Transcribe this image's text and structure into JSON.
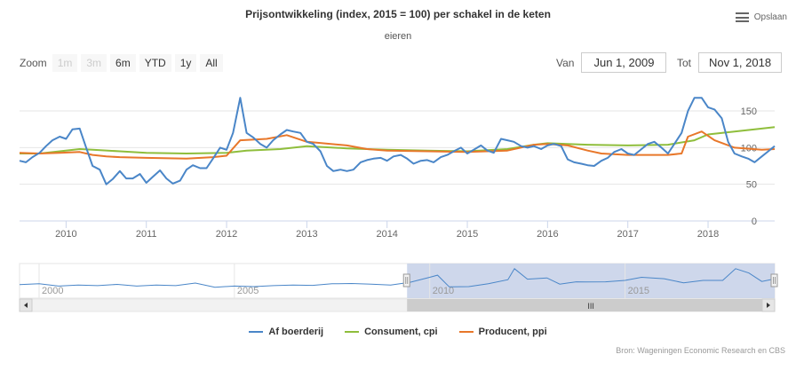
{
  "header": {
    "title": "Prijsontwikkeling (index, 2015 = 100) per schakel in de keten",
    "subtitle": "eieren"
  },
  "export": {
    "label": "Opslaan"
  },
  "zoom": {
    "label": "Zoom",
    "buttons": [
      {
        "label": "1m",
        "disabled": true
      },
      {
        "label": "3m",
        "disabled": true
      },
      {
        "label": "6m",
        "disabled": false
      },
      {
        "label": "YTD",
        "disabled": false
      },
      {
        "label": "1y",
        "disabled": false
      },
      {
        "label": "All",
        "disabled": false
      }
    ]
  },
  "range": {
    "from_label": "Van",
    "from_value": "Jun 1, 2009",
    "to_label": "Tot",
    "to_value": "Nov 1, 2018"
  },
  "navigator": {
    "labels": [
      "2000",
      "2005",
      "2010",
      "2015"
    ],
    "scrollbar_grip": "III"
  },
  "credits": "Bron: Wageningen Economic Research en CBS",
  "colors": {
    "boerderij": "#4a86c8",
    "consument": "#8fbe3c",
    "producent": "#e8772a",
    "navigator_fill": "#c5d0e8"
  },
  "chart_data": {
    "type": "line",
    "title": "Prijsontwikkeling (index, 2015 = 100) per schakel in de keten",
    "subtitle": "eieren",
    "x_range": [
      2009.42,
      2018.83
    ],
    "ylim": [
      0,
      190
    ],
    "y_ticks": [
      0,
      50,
      100,
      150
    ],
    "x_ticks": [
      "2010",
      "2011",
      "2012",
      "2013",
      "2014",
      "2015",
      "2016",
      "2017",
      "2018"
    ],
    "legend_position": "bottom",
    "series": [
      {
        "name": "Af boerderij",
        "color": "#4a86c8",
        "points": [
          [
            2009.42,
            82
          ],
          [
            2009.5,
            80
          ],
          [
            2009.58,
            87
          ],
          [
            2009.67,
            93
          ],
          [
            2009.75,
            102
          ],
          [
            2009.83,
            110
          ],
          [
            2009.92,
            115
          ],
          [
            2010.0,
            112
          ],
          [
            2010.08,
            125
          ],
          [
            2010.17,
            126
          ],
          [
            2010.25,
            100
          ],
          [
            2010.33,
            75
          ],
          [
            2010.42,
            70
          ],
          [
            2010.5,
            50
          ],
          [
            2010.58,
            57
          ],
          [
            2010.67,
            68
          ],
          [
            2010.75,
            58
          ],
          [
            2010.83,
            58
          ],
          [
            2010.92,
            64
          ],
          [
            2011.0,
            52
          ],
          [
            2011.08,
            60
          ],
          [
            2011.17,
            69
          ],
          [
            2011.25,
            58
          ],
          [
            2011.33,
            51
          ],
          [
            2011.42,
            55
          ],
          [
            2011.5,
            70
          ],
          [
            2011.58,
            76
          ],
          [
            2011.67,
            72
          ],
          [
            2011.75,
            72
          ],
          [
            2011.83,
            85
          ],
          [
            2011.92,
            100
          ],
          [
            2012.0,
            97
          ],
          [
            2012.08,
            120
          ],
          [
            2012.17,
            168
          ],
          [
            2012.25,
            120
          ],
          [
            2012.33,
            114
          ],
          [
            2012.42,
            105
          ],
          [
            2012.5,
            100
          ],
          [
            2012.58,
            110
          ],
          [
            2012.67,
            118
          ],
          [
            2012.75,
            124
          ],
          [
            2012.83,
            122
          ],
          [
            2012.92,
            120
          ],
          [
            2013.0,
            108
          ],
          [
            2013.08,
            105
          ],
          [
            2013.17,
            95
          ],
          [
            2013.25,
            75
          ],
          [
            2013.33,
            68
          ],
          [
            2013.42,
            70
          ],
          [
            2013.5,
            68
          ],
          [
            2013.58,
            70
          ],
          [
            2013.67,
            80
          ],
          [
            2013.75,
            83
          ],
          [
            2013.83,
            85
          ],
          [
            2013.92,
            86
          ],
          [
            2014.0,
            82
          ],
          [
            2014.08,
            88
          ],
          [
            2014.17,
            90
          ],
          [
            2014.25,
            85
          ],
          [
            2014.33,
            78
          ],
          [
            2014.42,
            82
          ],
          [
            2014.5,
            83
          ],
          [
            2014.58,
            80
          ],
          [
            2014.67,
            87
          ],
          [
            2014.75,
            90
          ],
          [
            2014.83,
            95
          ],
          [
            2014.92,
            100
          ],
          [
            2015.0,
            92
          ],
          [
            2015.08,
            97
          ],
          [
            2015.17,
            103
          ],
          [
            2015.25,
            96
          ],
          [
            2015.33,
            93
          ],
          [
            2015.42,
            112
          ],
          [
            2015.5,
            110
          ],
          [
            2015.58,
            108
          ],
          [
            2015.67,
            102
          ],
          [
            2015.75,
            100
          ],
          [
            2015.83,
            102
          ],
          [
            2015.92,
            98
          ],
          [
            2016.0,
            103
          ],
          [
            2016.08,
            105
          ],
          [
            2016.17,
            102
          ],
          [
            2016.25,
            84
          ],
          [
            2016.33,
            80
          ],
          [
            2016.42,
            78
          ],
          [
            2016.5,
            76
          ],
          [
            2016.58,
            75
          ],
          [
            2016.67,
            82
          ],
          [
            2016.75,
            86
          ],
          [
            2016.83,
            94
          ],
          [
            2016.92,
            98
          ],
          [
            2017.0,
            92
          ],
          [
            2017.08,
            90
          ],
          [
            2017.17,
            98
          ],
          [
            2017.25,
            105
          ],
          [
            2017.33,
            108
          ],
          [
            2017.42,
            100
          ],
          [
            2017.5,
            92
          ],
          [
            2017.58,
            105
          ],
          [
            2017.67,
            120
          ],
          [
            2017.75,
            150
          ],
          [
            2017.83,
            168
          ],
          [
            2017.92,
            168
          ],
          [
            2018.0,
            155
          ],
          [
            2018.08,
            152
          ],
          [
            2018.17,
            140
          ],
          [
            2018.25,
            108
          ],
          [
            2018.33,
            92
          ],
          [
            2018.42,
            88
          ],
          [
            2018.5,
            85
          ],
          [
            2018.58,
            80
          ],
          [
            2018.67,
            88
          ],
          [
            2018.75,
            95
          ],
          [
            2018.83,
            102
          ]
        ]
      },
      {
        "name": "Consument, cpi",
        "color": "#8fbe3c",
        "points": [
          [
            2009.42,
            92
          ],
          [
            2009.67,
            92
          ],
          [
            2009.92,
            95
          ],
          [
            2010.17,
            98
          ],
          [
            2010.33,
            97
          ],
          [
            2010.67,
            95
          ],
          [
            2011.0,
            93
          ],
          [
            2011.5,
            92
          ],
          [
            2012.0,
            93
          ],
          [
            2012.25,
            96
          ],
          [
            2012.67,
            98
          ],
          [
            2013.0,
            102
          ],
          [
            2013.5,
            99
          ],
          [
            2014.0,
            97
          ],
          [
            2014.5,
            96
          ],
          [
            2015.0,
            95
          ],
          [
            2015.5,
            98
          ],
          [
            2015.83,
            104
          ],
          [
            2016.0,
            106
          ],
          [
            2016.5,
            104
          ],
          [
            2017.0,
            103
          ],
          [
            2017.5,
            104
          ],
          [
            2017.83,
            110
          ],
          [
            2018.0,
            118
          ],
          [
            2018.33,
            122
          ],
          [
            2018.67,
            126
          ],
          [
            2018.83,
            128
          ]
        ]
      },
      {
        "name": "Producent, ppi",
        "color": "#e8772a",
        "points": [
          [
            2009.42,
            93
          ],
          [
            2009.67,
            92
          ],
          [
            2009.92,
            93
          ],
          [
            2010.17,
            94
          ],
          [
            2010.33,
            90
          ],
          [
            2010.5,
            88
          ],
          [
            2010.67,
            87
          ],
          [
            2011.0,
            86
          ],
          [
            2011.5,
            85
          ],
          [
            2011.83,
            87
          ],
          [
            2012.0,
            89
          ],
          [
            2012.17,
            110
          ],
          [
            2012.5,
            112
          ],
          [
            2012.75,
            117
          ],
          [
            2013.0,
            108
          ],
          [
            2013.5,
            103
          ],
          [
            2013.75,
            98
          ],
          [
            2014.0,
            96
          ],
          [
            2014.5,
            95
          ],
          [
            2015.0,
            94
          ],
          [
            2015.5,
            96
          ],
          [
            2015.83,
            104
          ],
          [
            2016.0,
            105
          ],
          [
            2016.25,
            103
          ],
          [
            2016.5,
            96
          ],
          [
            2016.67,
            92
          ],
          [
            2017.0,
            90
          ],
          [
            2017.5,
            90
          ],
          [
            2017.67,
            92
          ],
          [
            2017.75,
            115
          ],
          [
            2017.92,
            122
          ],
          [
            2018.08,
            110
          ],
          [
            2018.33,
            100
          ],
          [
            2018.67,
            97
          ],
          [
            2018.83,
            98
          ]
        ]
      }
    ],
    "navigator": {
      "x_range": [
        1999.5,
        2018.83
      ],
      "selected": [
        2009.42,
        2018.83
      ],
      "points": [
        [
          1999.5,
          65
        ],
        [
          2000.0,
          70
        ],
        [
          2000.5,
          55
        ],
        [
          2001.0,
          62
        ],
        [
          2001.5,
          58
        ],
        [
          2002.0,
          66
        ],
        [
          2002.5,
          55
        ],
        [
          2003.0,
          62
        ],
        [
          2003.5,
          58
        ],
        [
          2004.0,
          75
        ],
        [
          2004.5,
          48
        ],
        [
          2005.0,
          55
        ],
        [
          2005.5,
          52
        ],
        [
          2006.0,
          58
        ],
        [
          2006.5,
          62
        ],
        [
          2007.0,
          60
        ],
        [
          2007.5,
          70
        ],
        [
          2008.0,
          72
        ],
        [
          2008.5,
          68
        ],
        [
          2009.0,
          62
        ],
        [
          2009.5,
          80
        ],
        [
          2010.0,
          112
        ],
        [
          2010.2,
          126
        ],
        [
          2010.5,
          50
        ],
        [
          2011.0,
          52
        ],
        [
          2011.5,
          70
        ],
        [
          2012.0,
          97
        ],
        [
          2012.17,
          168
        ],
        [
          2012.5,
          100
        ],
        [
          2013.0,
          108
        ],
        [
          2013.33,
          68
        ],
        [
          2013.75,
          83
        ],
        [
          2014.0,
          82
        ],
        [
          2014.5,
          83
        ],
        [
          2015.0,
          92
        ],
        [
          2015.42,
          112
        ],
        [
          2016.0,
          103
        ],
        [
          2016.5,
          76
        ],
        [
          2017.0,
          92
        ],
        [
          2017.5,
          92
        ],
        [
          2017.83,
          168
        ],
        [
          2018.17,
          140
        ],
        [
          2018.5,
          85
        ],
        [
          2018.83,
          102
        ]
      ]
    }
  }
}
